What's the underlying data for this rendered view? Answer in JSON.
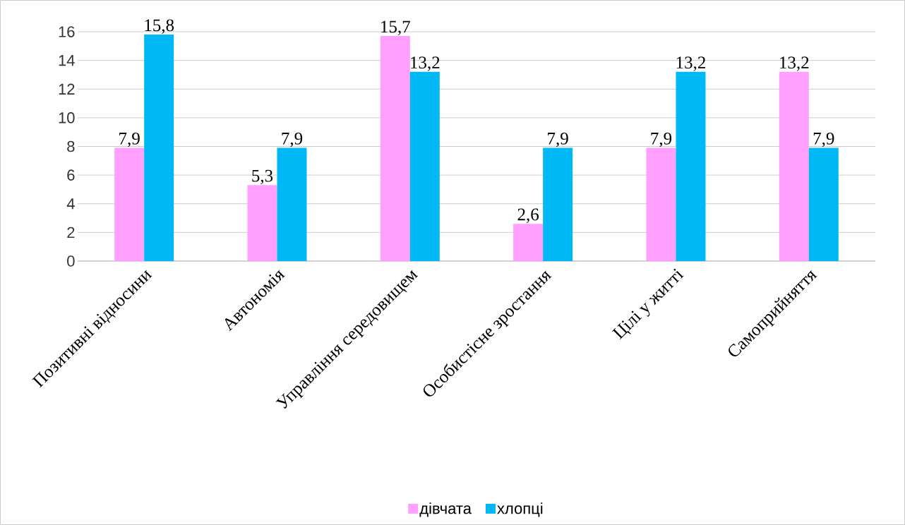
{
  "chart_data": {
    "type": "bar",
    "categories": [
      "Позитивні відносини",
      "Автономія",
      "Управління середовищем",
      "Особистісне зростання",
      "Цілі у житті",
      "Самоприйняття"
    ],
    "series": [
      {
        "name": "дівчата",
        "color": "#ff9fff",
        "values": [
          7.9,
          5.3,
          15.7,
          2.6,
          7.9,
          13.2
        ],
        "value_labels": [
          "7,9",
          "5,3",
          "15,7",
          "2,6",
          "7,9",
          "13,2"
        ]
      },
      {
        "name": "хлопці",
        "color": "#00b8f5",
        "values": [
          15.8,
          7.9,
          13.2,
          7.9,
          13.2,
          7.9
        ],
        "value_labels": [
          "15,8",
          "7,9",
          "13,2",
          "7,9",
          "13,2",
          "7,9"
        ]
      }
    ],
    "ylim": [
      0,
      16
    ],
    "yticks": [
      0,
      2,
      4,
      6,
      8,
      10,
      12,
      14,
      16
    ],
    "grid": "y",
    "legend": "bottom"
  }
}
